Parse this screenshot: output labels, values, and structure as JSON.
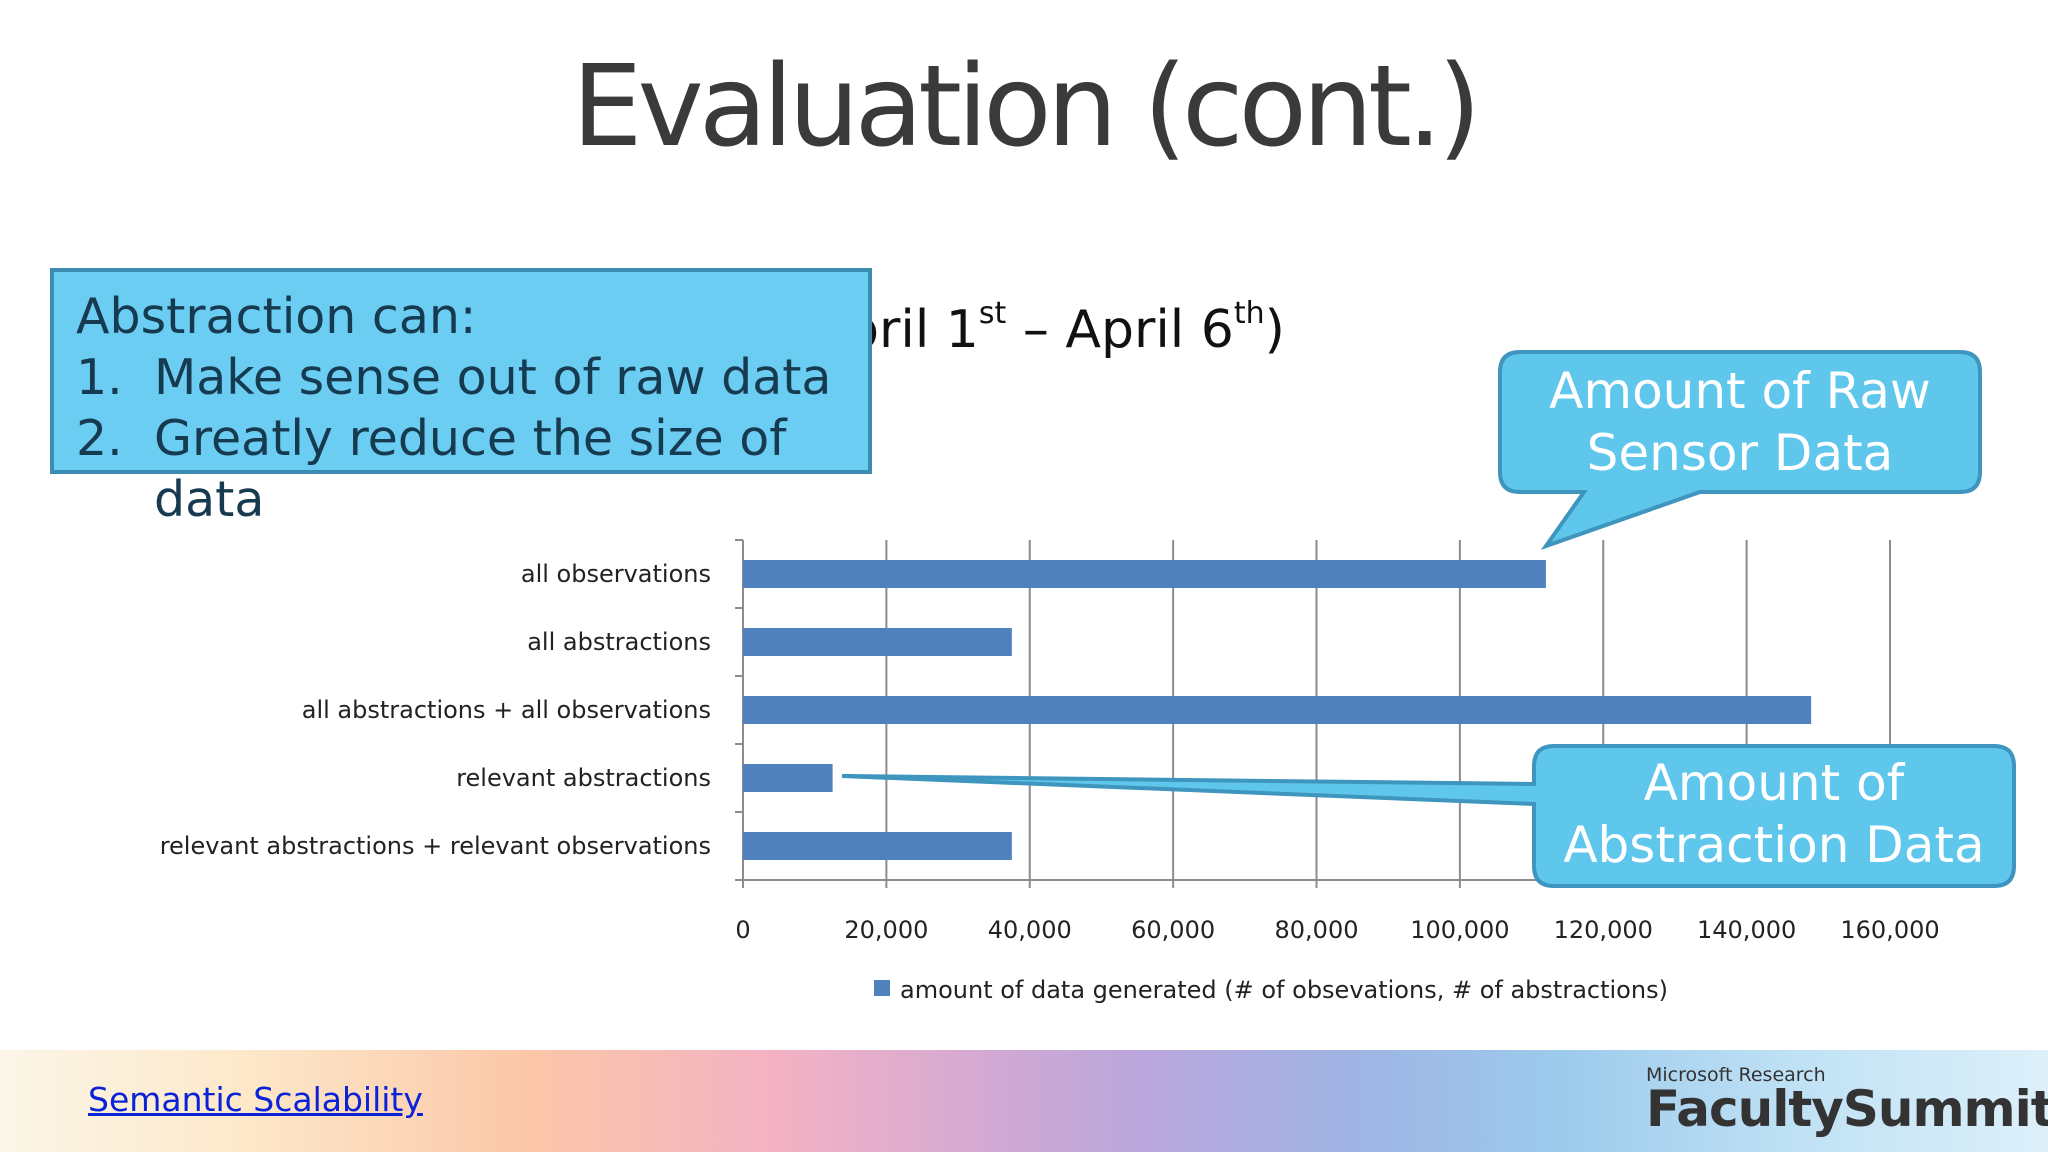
{
  "slide": {
    "title": "Evaluation (cont.)",
    "subtitle_pre": "pril 1",
    "subtitle_sup1": "st",
    "subtitle_mid": " – April 6",
    "subtitle_sup2": "th",
    "subtitle_post": ")"
  },
  "callout": {
    "heading": "Abstraction can:",
    "items": [
      {
        "num": "1.",
        "text": "Make sense out of raw data"
      },
      {
        "num": "2.",
        "text": "Greatly reduce the size of data"
      }
    ],
    "fill": "#6bcdf2"
  },
  "bubbles": {
    "raw": {
      "line1": "Amount of Raw",
      "line2": "Sensor Data"
    },
    "abstraction": {
      "line1": "Amount of",
      "line2": "Abstraction Data"
    },
    "fill": "#5fc6ec"
  },
  "chart_data": {
    "type": "bar",
    "orientation": "horizontal",
    "categories": [
      "all observations",
      "all abstractions",
      "all abstractions + all observations",
      "relevant abstractions",
      "relevant abstractions + relevant observations"
    ],
    "series": [
      {
        "name": "amount of data generated (# of obsevations, # of abstractions)",
        "values": [
          112000,
          37500,
          149000,
          12500,
          37500
        ],
        "color": "#4f81bd"
      }
    ],
    "xlim": [
      0,
      160000
    ],
    "xticks": [
      "0",
      "20,000",
      "40,000",
      "60,000",
      "80,000",
      "100,000",
      "120,000",
      "140,000",
      "160,000"
    ],
    "grid": "vertical",
    "legend": "bottom"
  },
  "footer": {
    "link": "Semantic Scalability",
    "brand_small": "Microsoft Research",
    "brand_big": "FacultySummit"
  }
}
